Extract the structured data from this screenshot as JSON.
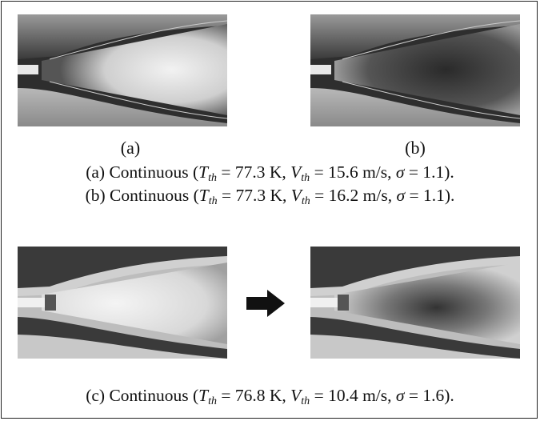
{
  "top_row": {
    "labels": [
      "(a)",
      "(b)"
    ]
  },
  "captions": [
    {
      "prefix": "(a) Continuous (",
      "t_symbol": "T",
      "t_sub": "th",
      "t_value": " = 77.3 K, ",
      "v_symbol": "V",
      "v_sub": "th",
      "v_value": " = 15.6 m/s, ",
      "sigma_symbol": "σ",
      "sigma_value": " = 1.1)."
    },
    {
      "prefix": "(b) Continuous (",
      "t_symbol": "T",
      "t_sub": "th",
      "t_value": " = 77.3 K, ",
      "v_symbol": "V",
      "v_sub": "th",
      "v_value": " = 16.2 m/s, ",
      "sigma_symbol": "σ",
      "sigma_value": " = 1.1)."
    },
    {
      "prefix": "(c) Continuous (",
      "t_symbol": "T",
      "t_sub": "th",
      "t_value": " = 76.8 K, ",
      "v_symbol": "V",
      "v_sub": "th",
      "v_value": " = 10.4 m/s, ",
      "sigma_symbol": "σ",
      "sigma_value": " = 1.6)."
    }
  ]
}
